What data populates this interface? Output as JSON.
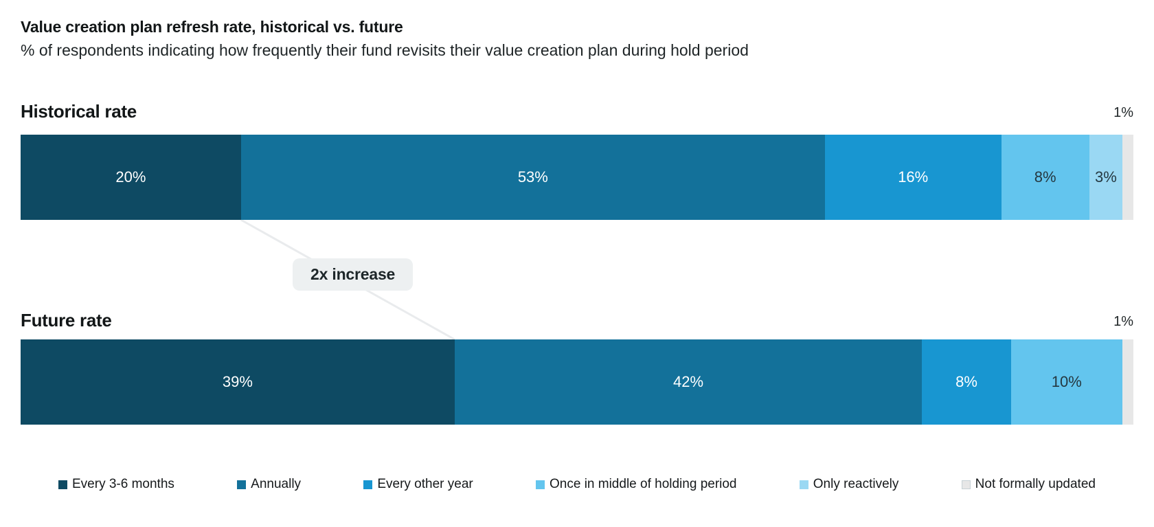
{
  "header": {
    "title": "Value creation plan refresh rate, historical vs. future",
    "subtitle": "% of respondents indicating how frequently their fund revisits their value creation plan during hold period"
  },
  "annotation": {
    "label": "2x increase"
  },
  "sections": {
    "historical": {
      "label": "Historical rate",
      "outside_label": "1%"
    },
    "future": {
      "label": "Future rate",
      "outside_label": "1%"
    }
  },
  "chart_data": {
    "type": "bar",
    "orientation": "horizontal-stacked",
    "title": "Value creation plan refresh rate, historical vs. future",
    "subtitle": "% of respondents indicating how frequently their fund revisits their value creation plan during hold period",
    "categories": [
      "Every 3-6 months",
      "Annually",
      "Every other year",
      "Once in middle of holding period",
      "Only reactively",
      "Not formally updated"
    ],
    "colors": [
      "#0E4A63",
      "#13719A",
      "#1896D1",
      "#63C5EE",
      "#9AD8F3",
      "#E7E7E7"
    ],
    "label_colors": [
      "#FFFFFF",
      "#FFFFFF",
      "#FFFFFF",
      "#253840",
      "#253840",
      "#253840"
    ],
    "series": [
      {
        "name": "Historical rate",
        "values": [
          20,
          53,
          16,
          8,
          3,
          1
        ],
        "outside_label": "1%"
      },
      {
        "name": "Future rate",
        "values": [
          39,
          42,
          8,
          10,
          0,
          1
        ],
        "outside_label": "1%"
      }
    ],
    "value_suffix": "%",
    "min_inside_label": 2,
    "annotation": "2x increase",
    "legend_position": "bottom",
    "connector_color": "#E9EBED",
    "xlim": [
      0,
      100
    ],
    "grid": false
  }
}
